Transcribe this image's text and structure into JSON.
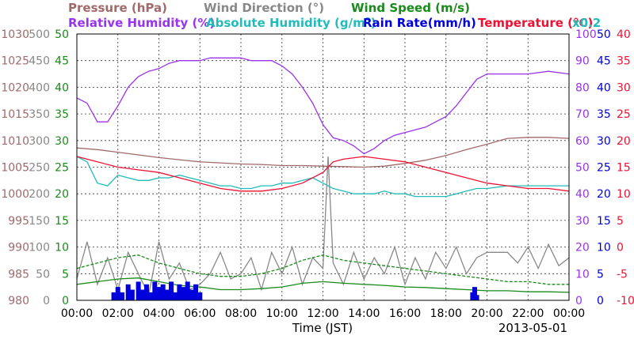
{
  "chart_data": {
    "type": "line",
    "date": "2013-05-01",
    "xlabel": "Time (JST)",
    "x_ticks": [
      "00:00",
      "02:00",
      "04:00",
      "06:00",
      "08:00",
      "10:00",
      "12:00",
      "14:00",
      "16:00",
      "18:00",
      "20:00",
      "22:00",
      "00:00"
    ],
    "xlim_hours": [
      0,
      24
    ],
    "legend": {
      "row1": [
        {
          "name": "Pressure (hPa)",
          "color": "#a06a6a"
        },
        {
          "name": "Wind Direction (°)",
          "color": "#888888"
        },
        {
          "name": "Wind Speed (m/s)",
          "color": "#1a8a1a"
        }
      ],
      "row2": [
        {
          "name": "Relative Humidity (%)",
          "color": "#9933ee"
        },
        {
          "name": "Absolute Humidity (g/m",
          "sup": "3",
          "tail": ")",
          "color": "#22bbbb"
        },
        {
          "name": "Rain Rate(mm/h)",
          "color": "#0000dd"
        },
        {
          "name": "Temperature (°C)",
          "color": "#ee1133"
        }
      ],
      "scale_note": "x0.2"
    },
    "axes": {
      "pressure": {
        "ticks": [
          "1030",
          "1025",
          "1020",
          "1015",
          "1010",
          "1005",
          "1000",
          "995",
          "990",
          "985",
          "980"
        ],
        "range": [
          980,
          1030
        ],
        "color": "#a06a6a"
      },
      "wind_direction": {
        "ticks": [
          "500",
          "450",
          "400",
          "350",
          "300",
          "250",
          "200",
          "150",
          "100",
          "50",
          "0"
        ],
        "range": [
          0,
          500
        ],
        "color": "#888888"
      },
      "wind_speed": {
        "ticks": [
          "50",
          "45",
          "40",
          "35",
          "30",
          "25",
          "20",
          "15",
          "10",
          "5",
          "0"
        ],
        "range": [
          0,
          50
        ],
        "color": "#1a8a1a"
      },
      "relative_humidity": {
        "ticks": [
          "100",
          "90",
          "80",
          "70",
          "60",
          "50",
          "40",
          "30",
          "20",
          "10",
          "0"
        ],
        "range": [
          0,
          100
        ],
        "color": "#9933ee"
      },
      "rain_rate": {
        "ticks": [
          "50",
          "45",
          "40",
          "35",
          "30",
          "25",
          "20",
          "15",
          "10",
          "5",
          "0"
        ],
        "range": [
          0,
          50
        ],
        "color": "#0000dd"
      },
      "temperature": {
        "ticks": [
          "40",
          "35",
          "30",
          "25",
          "20",
          "15",
          "10",
          "5",
          "0",
          "-5",
          "-10"
        ],
        "range": [
          -10,
          40
        ],
        "color": "#ee1133"
      }
    },
    "series": [
      {
        "name": "Pressure (hPa)",
        "axis": "pressure",
        "color": "#a06a6a",
        "points": [
          [
            0,
            1008.6
          ],
          [
            1,
            1008.3
          ],
          [
            2,
            1007.8
          ],
          [
            3,
            1007.3
          ],
          [
            4,
            1006.8
          ],
          [
            5,
            1006.4
          ],
          [
            6,
            1006.0
          ],
          [
            7,
            1005.8
          ],
          [
            8,
            1005.6
          ],
          [
            9,
            1005.5
          ],
          [
            10,
            1005.3
          ],
          [
            11,
            1005.3
          ],
          [
            12,
            1005.2
          ],
          [
            13,
            1005.1
          ],
          [
            14,
            1005.0
          ],
          [
            15,
            1005.2
          ],
          [
            16,
            1005.7
          ],
          [
            17,
            1006.3
          ],
          [
            18,
            1007.2
          ],
          [
            19,
            1008.3
          ],
          [
            20,
            1009.3
          ],
          [
            21,
            1010.4
          ],
          [
            22,
            1010.6
          ],
          [
            23,
            1010.6
          ],
          [
            24,
            1010.4
          ]
        ]
      },
      {
        "name": "Wind Direction (°)",
        "axis": "wind_direction",
        "color": "#888888",
        "points": [
          [
            0,
            40
          ],
          [
            0.5,
            110
          ],
          [
            1,
            30
          ],
          [
            1.5,
            80
          ],
          [
            2,
            20
          ],
          [
            2.5,
            90
          ],
          [
            3,
            50
          ],
          [
            3.5,
            10
          ],
          [
            4,
            110
          ],
          [
            4.5,
            40
          ],
          [
            5,
            70
          ],
          [
            5.5,
            20
          ],
          [
            6,
            30
          ],
          [
            6.5,
            50
          ],
          [
            7,
            90
          ],
          [
            7.5,
            40
          ],
          [
            8,
            50
          ],
          [
            8.5,
            80
          ],
          [
            9,
            20
          ],
          [
            9.5,
            90
          ],
          [
            10,
            50
          ],
          [
            10.5,
            100
          ],
          [
            11,
            30
          ],
          [
            11.5,
            80
          ],
          [
            12,
            60
          ],
          [
            12.25,
            270
          ],
          [
            12.5,
            70
          ],
          [
            13,
            30
          ],
          [
            13.5,
            90
          ],
          [
            14,
            40
          ],
          [
            14.5,
            80
          ],
          [
            15,
            50
          ],
          [
            15.5,
            100
          ],
          [
            16,
            30
          ],
          [
            16.5,
            80
          ],
          [
            17,
            40
          ],
          [
            17.5,
            90
          ],
          [
            18,
            60
          ],
          [
            18.5,
            100
          ],
          [
            19,
            50
          ],
          [
            19.5,
            80
          ],
          [
            20,
            90
          ],
          [
            21,
            90
          ],
          [
            21.5,
            70
          ],
          [
            22,
            100
          ],
          [
            22.5,
            60
          ],
          [
            23,
            105
          ],
          [
            23.5,
            65
          ],
          [
            24,
            80
          ]
        ]
      },
      {
        "name": "Wind Speed (m/s)",
        "axis": "wind_speed",
        "color": "#1a8a1a",
        "points": [
          [
            0,
            3.0
          ],
          [
            1,
            3.5
          ],
          [
            2,
            4.0
          ],
          [
            3,
            4.2
          ],
          [
            4,
            3.5
          ],
          [
            5,
            2.8
          ],
          [
            6,
            2.5
          ],
          [
            7,
            2.0
          ],
          [
            8,
            2.0
          ],
          [
            9,
            2.2
          ],
          [
            10,
            2.5
          ],
          [
            11,
            3.2
          ],
          [
            12,
            3.5
          ],
          [
            13,
            3.2
          ],
          [
            14,
            3.0
          ],
          [
            15,
            2.8
          ],
          [
            16,
            2.5
          ],
          [
            17,
            2.4
          ],
          [
            18,
            2.2
          ],
          [
            19,
            2.0
          ],
          [
            20,
            1.8
          ],
          [
            21,
            1.8
          ],
          [
            22,
            1.6
          ],
          [
            23,
            1.6
          ],
          [
            24,
            1.5
          ]
        ]
      },
      {
        "name": "Wind Speed gust (m/s)",
        "axis": "wind_speed",
        "color": "#1a8a1a",
        "dashed": true,
        "points": [
          [
            0,
            6
          ],
          [
            1,
            7
          ],
          [
            2,
            8
          ],
          [
            3,
            8.5
          ],
          [
            4,
            7
          ],
          [
            5,
            6
          ],
          [
            6,
            5
          ],
          [
            7,
            4.5
          ],
          [
            8,
            4.5
          ],
          [
            9,
            5
          ],
          [
            10,
            6
          ],
          [
            11,
            7.5
          ],
          [
            12,
            8.5
          ],
          [
            13,
            7.5
          ],
          [
            14,
            7
          ],
          [
            15,
            6.5
          ],
          [
            16,
            6
          ],
          [
            17,
            5.5
          ],
          [
            18,
            5
          ],
          [
            19,
            4.5
          ],
          [
            20,
            4
          ],
          [
            21,
            3.5
          ],
          [
            22,
            3.5
          ],
          [
            23,
            3
          ],
          [
            24,
            3
          ]
        ]
      },
      {
        "name": "Relative Humidity (%)",
        "axis": "relative_humidity",
        "color": "#9933ee",
        "points": [
          [
            0,
            76
          ],
          [
            0.5,
            74
          ],
          [
            1,
            67
          ],
          [
            1.5,
            67
          ],
          [
            2,
            73
          ],
          [
            2.5,
            80
          ],
          [
            3,
            84
          ],
          [
            3.5,
            86
          ],
          [
            4,
            87
          ],
          [
            4.5,
            89
          ],
          [
            5,
            90
          ],
          [
            5.5,
            90
          ],
          [
            6,
            90
          ],
          [
            6.5,
            91
          ],
          [
            7,
            91
          ],
          [
            7.5,
            91
          ],
          [
            8,
            91
          ],
          [
            8.5,
            90
          ],
          [
            9,
            90
          ],
          [
            9.5,
            90
          ],
          [
            10,
            88
          ],
          [
            10.5,
            85
          ],
          [
            11,
            80
          ],
          [
            11.5,
            74
          ],
          [
            12,
            66
          ],
          [
            12.5,
            61
          ],
          [
            13,
            60
          ],
          [
            13.5,
            58
          ],
          [
            14,
            55
          ],
          [
            14.5,
            57
          ],
          [
            15,
            60
          ],
          [
            15.5,
            62
          ],
          [
            16,
            63
          ],
          [
            16.5,
            64
          ],
          [
            17,
            65
          ],
          [
            17.5,
            67
          ],
          [
            18,
            69
          ],
          [
            18.5,
            73
          ],
          [
            19,
            78
          ],
          [
            19.5,
            83
          ],
          [
            20,
            85
          ],
          [
            21,
            85
          ],
          [
            22,
            85
          ],
          [
            23,
            86
          ],
          [
            24,
            85
          ]
        ]
      },
      {
        "name": "Absolute Humidity (g/m3) x0.2",
        "axis": "relative_humidity",
        "color": "#22bbbb",
        "points": [
          [
            0,
            54
          ],
          [
            0.5,
            52
          ],
          [
            1,
            44
          ],
          [
            1.5,
            43
          ],
          [
            2,
            47
          ],
          [
            2.5,
            46
          ],
          [
            3,
            45
          ],
          [
            3.5,
            45
          ],
          [
            4,
            46
          ],
          [
            4.5,
            46
          ],
          [
            5,
            47
          ],
          [
            5.5,
            46
          ],
          [
            6,
            45
          ],
          [
            6.5,
            44
          ],
          [
            7,
            43
          ],
          [
            7.5,
            43
          ],
          [
            8,
            42
          ],
          [
            8.5,
            42
          ],
          [
            9,
            43
          ],
          [
            9.5,
            43
          ],
          [
            10,
            44
          ],
          [
            10.5,
            44
          ],
          [
            11,
            45
          ],
          [
            11.5,
            46
          ],
          [
            12,
            44
          ],
          [
            12.5,
            42
          ],
          [
            13,
            41
          ],
          [
            13.5,
            40
          ],
          [
            14,
            40
          ],
          [
            14.5,
            40
          ],
          [
            15,
            41
          ],
          [
            15.5,
            40
          ],
          [
            16,
            40
          ],
          [
            16.5,
            39
          ],
          [
            17,
            39
          ],
          [
            17.5,
            39
          ],
          [
            18,
            39
          ],
          [
            18.5,
            40
          ],
          [
            19,
            41
          ],
          [
            19.5,
            42
          ],
          [
            20,
            42
          ],
          [
            21,
            43
          ],
          [
            22,
            43
          ],
          [
            23,
            43
          ],
          [
            24,
            43
          ]
        ]
      },
      {
        "name": "Temperature (°C)",
        "axis": "temperature",
        "color": "#ee1133",
        "points": [
          [
            0,
            17.0
          ],
          [
            1,
            16.0
          ],
          [
            2,
            15.0
          ],
          [
            3,
            14.5
          ],
          [
            4,
            14.0
          ],
          [
            5,
            13.0
          ],
          [
            6,
            12.0
          ],
          [
            7,
            11.0
          ],
          [
            8,
            10.5
          ],
          [
            9,
            10.5
          ],
          [
            10,
            11.0
          ],
          [
            11,
            12.0
          ],
          [
            12,
            14.0
          ],
          [
            12.5,
            16.0
          ],
          [
            13,
            16.5
          ],
          [
            14,
            17.0
          ],
          [
            15,
            16.5
          ],
          [
            16,
            16.0
          ],
          [
            17,
            15.0
          ],
          [
            18,
            14.0
          ],
          [
            19,
            13.0
          ],
          [
            20,
            12.0
          ],
          [
            21,
            11.5
          ],
          [
            22,
            11.0
          ],
          [
            23,
            11.0
          ],
          [
            24,
            10.5
          ]
        ]
      },
      {
        "name": "Rain Rate(mm/h)",
        "axis": "rain_rate",
        "color": "#0000dd",
        "type": "bar",
        "points": [
          [
            1.8,
            1.5
          ],
          [
            2.0,
            2.5
          ],
          [
            2.2,
            1.5
          ],
          [
            2.5,
            3.0
          ],
          [
            2.7,
            2.0
          ],
          [
            3.0,
            3.5
          ],
          [
            3.2,
            2.0
          ],
          [
            3.4,
            3.0
          ],
          [
            3.6,
            1.5
          ],
          [
            3.8,
            3.5
          ],
          [
            4.0,
            2.5
          ],
          [
            4.2,
            3.0
          ],
          [
            4.4,
            2.0
          ],
          [
            4.6,
            3.5
          ],
          [
            4.8,
            1.5
          ],
          [
            5.0,
            3.0
          ],
          [
            5.2,
            2.5
          ],
          [
            5.4,
            3.5
          ],
          [
            5.6,
            2.0
          ],
          [
            5.8,
            3.0
          ],
          [
            6.0,
            1.5
          ],
          [
            19.3,
            1.5
          ],
          [
            19.4,
            2.5
          ],
          [
            19.5,
            1.0
          ]
        ]
      }
    ]
  }
}
